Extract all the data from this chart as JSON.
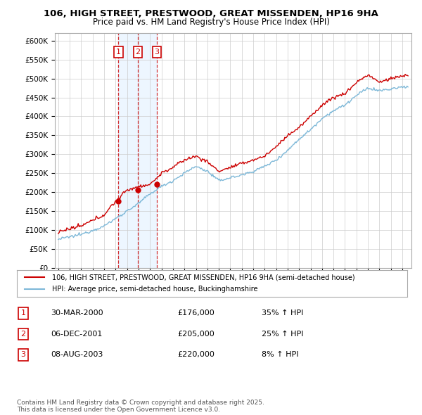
{
  "title": "106, HIGH STREET, PRESTWOOD, GREAT MISSENDEN, HP16 9HA",
  "subtitle": "Price paid vs. HM Land Registry's House Price Index (HPI)",
  "property_label": "106, HIGH STREET, PRESTWOOD, GREAT MISSENDEN, HP16 9HA (semi-detached house)",
  "hpi_label": "HPI: Average price, semi-detached house, Buckinghamshire",
  "property_color": "#cc0000",
  "hpi_color": "#7db8d8",
  "transactions": [
    {
      "num": 1,
      "date": "30-MAR-2000",
      "price": 176000,
      "hpi_rel": "35% ↑ HPI",
      "x_year": 2000.24
    },
    {
      "num": 2,
      "date": "06-DEC-2001",
      "price": 205000,
      "hpi_rel": "25% ↑ HPI",
      "x_year": 2001.93
    },
    {
      "num": 3,
      "date": "08-AUG-2003",
      "price": 220000,
      "hpi_rel": "8% ↑ HPI",
      "x_year": 2003.6
    }
  ],
  "footer": "Contains HM Land Registry data © Crown copyright and database right 2025.\nThis data is licensed under the Open Government Licence v3.0.",
  "ylim": [
    0,
    620000
  ],
  "yticks": [
    0,
    50000,
    100000,
    150000,
    200000,
    250000,
    300000,
    350000,
    400000,
    450000,
    500000,
    550000,
    600000
  ],
  "xlim_start": 1994.7,
  "xlim_end": 2025.8
}
